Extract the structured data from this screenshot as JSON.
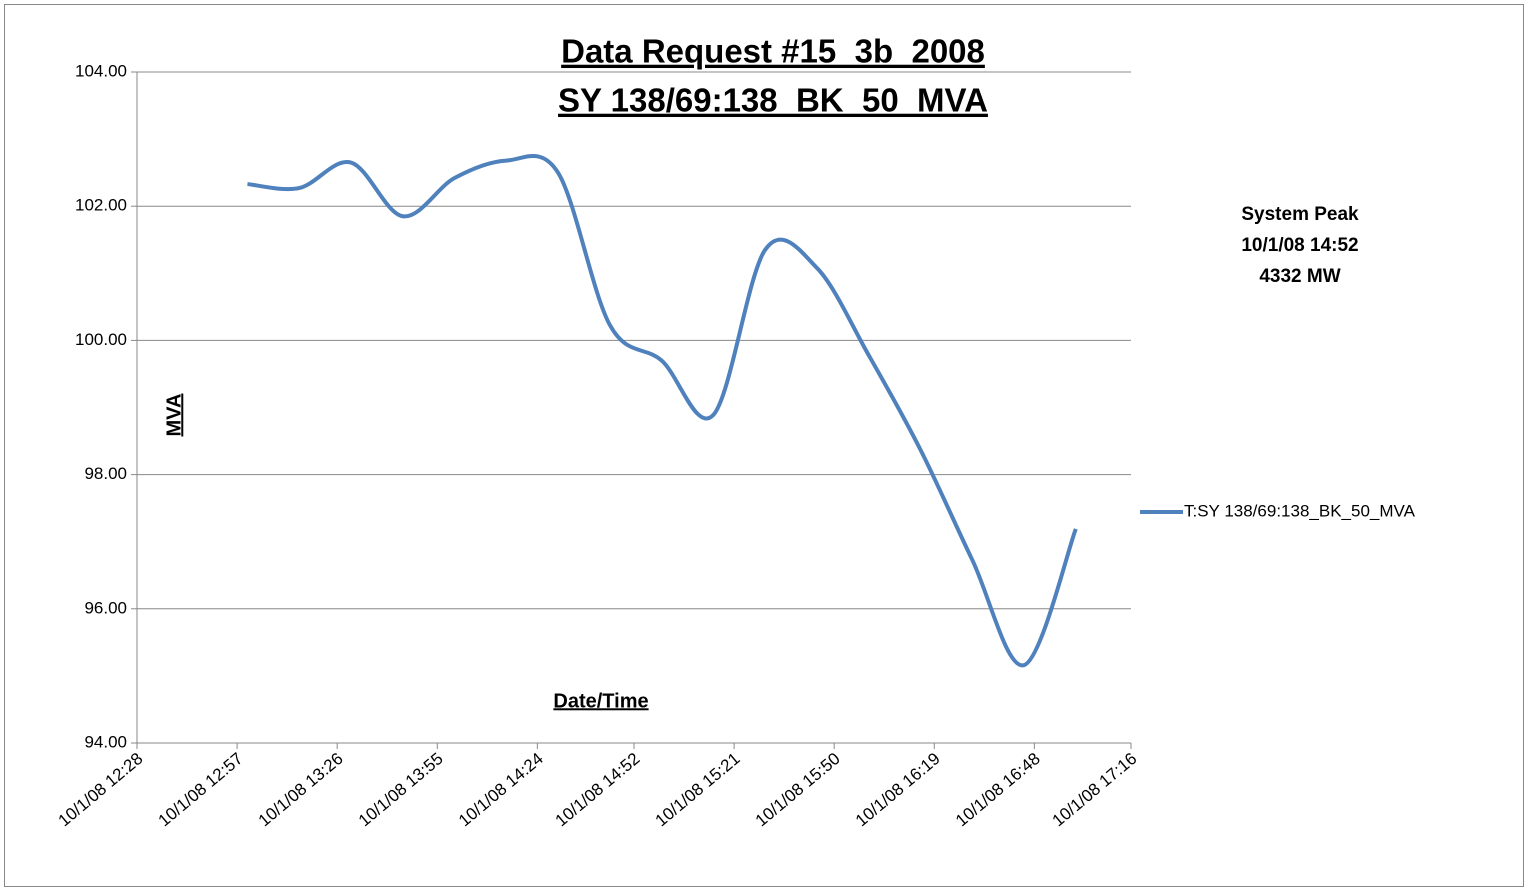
{
  "chart_data": {
    "type": "line",
    "title": "Data Request #15_3b_2008",
    "subtitle": "SY 138/69:138_BK_50_MVA",
    "x_label": "Date/Time",
    "y_label": "MVA",
    "annotations": [
      "System Peak",
      "10/1/08 14:52",
      "4332 MW"
    ],
    "x": [
      "10/1/08 13:00",
      "10/1/08 13:15",
      "10/1/08 13:30",
      "10/1/08 13:45",
      "10/1/08 14:00",
      "10/1/08 14:15",
      "10/1/08 14:30",
      "10/1/08 14:45",
      "10/1/08 15:00",
      "10/1/08 15:15",
      "10/1/08 15:30",
      "10/1/08 15:45",
      "10/1/08 16:00",
      "10/1/08 16:15",
      "10/1/08 16:30",
      "10/1/08 16:45",
      "10/1/08 17:00"
    ],
    "series": [
      {
        "name": "T:SY 138/69:138_BK_50_MVA",
        "color": "#4f81bd",
        "values": [
          102.33,
          102.27,
          102.65,
          101.85,
          102.42,
          102.68,
          102.5,
          100.23,
          99.7,
          98.89,
          101.35,
          101.08,
          99.78,
          98.37,
          96.73,
          95.16,
          97.19
        ]
      }
    ],
    "xlim": [
      "10/1/08 12:28",
      "10/1/08 17:16"
    ],
    "xticks": [
      "10/1/08 12:28",
      "10/1/08 12:57",
      "10/1/08 13:26",
      "10/1/08 13:55",
      "10/1/08 14:24",
      "10/1/08 14:52",
      "10/1/08 15:21",
      "10/1/08 15:50",
      "10/1/08 16:19",
      "10/1/08 16:48",
      "10/1/08 17:16"
    ],
    "ylim": [
      94,
      104
    ],
    "yticks": [
      {
        "value": 94,
        "label": "94.00"
      },
      {
        "value": 96,
        "label": "96.00"
      },
      {
        "value": 98,
        "label": "98.00"
      },
      {
        "value": 100,
        "label": "100.00"
      },
      {
        "value": 102,
        "label": "102.00"
      },
      {
        "value": 104,
        "label": "104.00"
      }
    ],
    "grid": true,
    "legend": "right"
  }
}
